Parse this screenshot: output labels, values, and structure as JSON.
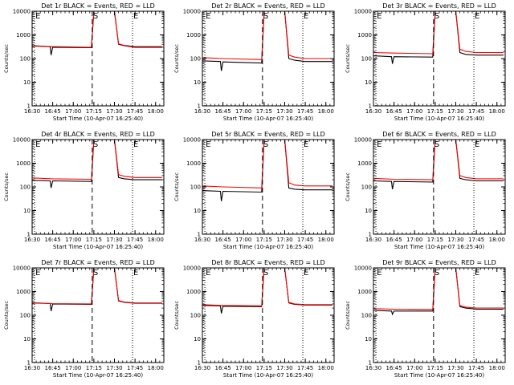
{
  "chart_data": {
    "type": "line",
    "y_scale": "log",
    "ylim": [
      1,
      10000
    ],
    "y_ticks": [
      1,
      10,
      100,
      1000,
      10000
    ],
    "y_tick_labels": [
      "1",
      "10",
      "100",
      "1000",
      "10000"
    ],
    "xlim": [
      16.5,
      18.1
    ],
    "x_ticks": [
      16.5,
      16.75,
      17.0,
      17.25,
      17.5,
      17.75,
      18.0
    ],
    "x_tick_labels": [
      "16:30",
      "16:45",
      "17:00",
      "17:15",
      "17:30",
      "17:45",
      "18:00"
    ],
    "xlabel": "Start Time (10-Apr-07 16:25:40)",
    "ylabel": "Counts/sec",
    "legend": "in title: BLACK = Events, RED = LLD",
    "panels": [
      {
        "title": "Det 1r BLACK = Events, RED = LLD",
        "markers": [
          {
            "label": "E",
            "x": 16.53,
            "style": "dotted"
          },
          {
            "label": "S",
            "x": 17.23,
            "style": "dashed"
          },
          {
            "label": "E",
            "x": 17.72,
            "style": "dotted"
          }
        ],
        "series": [
          {
            "name": "Events",
            "color": "#000000",
            "x": [
              16.5,
              16.7,
              16.72,
              16.73,
              16.75,
              17.22,
              17.25,
              17.5,
              17.55,
              17.62,
              17.75,
              18.08
            ],
            "y": [
              340,
              320,
              310,
              140,
              300,
              290,
              10000,
              10000,
              400,
              350,
              300,
              300
            ]
          },
          {
            "name": "LLD",
            "color": "#ff0000",
            "x": [
              16.5,
              16.75,
              17.22,
              17.25,
              17.5,
              17.55,
              17.62,
              17.75,
              18.08
            ],
            "y": [
              350,
              320,
              300,
              10000,
              10000,
              420,
              360,
              320,
              320
            ]
          }
        ]
      },
      {
        "title": "Det 2r BLACK = Events, RED = LLD",
        "markers": [
          {
            "label": "E",
            "x": 16.53,
            "style": "dotted"
          },
          {
            "label": "S",
            "x": 17.23,
            "style": "dashed"
          },
          {
            "label": "E",
            "x": 17.72,
            "style": "dotted"
          }
        ],
        "series": [
          {
            "name": "Events",
            "color": "#000000",
            "x": [
              16.5,
              16.72,
              16.73,
              16.75,
              17.22,
              17.25,
              17.5,
              17.55,
              17.62,
              17.75,
              18.08
            ],
            "y": [
              80,
              75,
              30,
              72,
              65,
              10000,
              10000,
              100,
              85,
              75,
              75
            ]
          },
          {
            "name": "LLD",
            "color": "#ff0000",
            "x": [
              16.5,
              16.75,
              17.22,
              17.25,
              17.5,
              17.55,
              17.62,
              17.75,
              18.08
            ],
            "y": [
              110,
              100,
              90,
              10000,
              10000,
              140,
              115,
              100,
              100
            ]
          }
        ]
      },
      {
        "title": "Det 3r BLACK = Events, RED = LLD",
        "markers": [
          {
            "label": "E",
            "x": 16.53,
            "style": "dotted"
          },
          {
            "label": "S",
            "x": 17.23,
            "style": "dashed"
          },
          {
            "label": "E",
            "x": 17.72,
            "style": "dotted"
          }
        ],
        "series": [
          {
            "name": "Events",
            "color": "#000000",
            "x": [
              16.5,
              16.72,
              16.73,
              16.75,
              17.22,
              17.25,
              17.5,
              17.55,
              17.62,
              17.75,
              18.08
            ],
            "y": [
              130,
              120,
              60,
              120,
              115,
              10000,
              10000,
              180,
              150,
              140,
              140
            ]
          },
          {
            "name": "LLD",
            "color": "#ff0000",
            "x": [
              16.5,
              16.75,
              17.22,
              17.25,
              17.5,
              17.55,
              17.62,
              17.75,
              18.08
            ],
            "y": [
              180,
              170,
              160,
              10000,
              10000,
              250,
              200,
              180,
              180
            ]
          }
        ]
      },
      {
        "title": "Det 4r BLACK = Events, RED = LLD",
        "markers": [
          {
            "label": "E",
            "x": 16.53,
            "style": "dotted"
          },
          {
            "label": "S",
            "x": 17.23,
            "style": "dashed"
          },
          {
            "label": "E",
            "x": 17.72,
            "style": "dotted"
          }
        ],
        "series": [
          {
            "name": "Events",
            "color": "#000000",
            "x": [
              16.5,
              16.72,
              16.73,
              16.75,
              17.22,
              17.25,
              17.5,
              17.55,
              17.62,
              17.75,
              18.08
            ],
            "y": [
              190,
              180,
              90,
              180,
              170,
              10000,
              10000,
              250,
              220,
              200,
              200
            ]
          },
          {
            "name": "LLD",
            "color": "#ff0000",
            "x": [
              16.5,
              16.75,
              17.22,
              17.25,
              17.5,
              17.55,
              17.62,
              17.75,
              18.08
            ],
            "y": [
              240,
              220,
              210,
              10000,
              10000,
              330,
              280,
              250,
              250
            ]
          }
        ]
      },
      {
        "title": "Det 5r BLACK = Events, RED = LLD",
        "markers": [
          {
            "label": "E",
            "x": 16.53,
            "style": "dotted"
          },
          {
            "label": "S",
            "x": 17.23,
            "style": "dashed"
          },
          {
            "label": "E",
            "x": 17.72,
            "style": "dotted"
          }
        ],
        "series": [
          {
            "name": "Events",
            "color": "#000000",
            "x": [
              16.5,
              16.72,
              16.73,
              16.75,
              17.22,
              17.25,
              17.5,
              17.55,
              17.62,
              17.75,
              18.08
            ],
            "y": [
              70,
              65,
              25,
              65,
              60,
              10000,
              10000,
              90,
              80,
              75,
              75
            ]
          },
          {
            "name": "LLD",
            "color": "#ff0000",
            "x": [
              16.5,
              16.75,
              17.22,
              17.25,
              17.5,
              17.55,
              17.62,
              17.75,
              18.08
            ],
            "y": [
              110,
              100,
              90,
              10000,
              10000,
              150,
              120,
              110,
              110
            ]
          }
        ]
      },
      {
        "title": "Det 6r BLACK = Events, RED = LLD",
        "markers": [
          {
            "label": "E",
            "x": 16.53,
            "style": "dotted"
          },
          {
            "label": "S",
            "x": 17.23,
            "style": "dashed"
          },
          {
            "label": "E",
            "x": 17.72,
            "style": "dotted"
          }
        ],
        "series": [
          {
            "name": "Events",
            "color": "#000000",
            "x": [
              16.5,
              16.72,
              16.73,
              16.75,
              17.22,
              17.25,
              17.5,
              17.55,
              17.62,
              17.75,
              18.08
            ],
            "y": [
              180,
              170,
              80,
              170,
              160,
              10000,
              10000,
              230,
              200,
              180,
              180
            ]
          },
          {
            "name": "LLD",
            "color": "#ff0000",
            "x": [
              16.5,
              16.75,
              17.22,
              17.25,
              17.5,
              17.55,
              17.62,
              17.75,
              18.08
            ],
            "y": [
              230,
              210,
              200,
              10000,
              10000,
              300,
              250,
              220,
              220
            ]
          }
        ]
      },
      {
        "title": "Det 7r BLACK = Events, RED = LLD",
        "markers": [
          {
            "label": "E",
            "x": 16.53,
            "style": "dotted"
          },
          {
            "label": "S",
            "x": 17.23,
            "style": "dashed"
          },
          {
            "label": "E",
            "x": 17.72,
            "style": "dotted"
          }
        ],
        "series": [
          {
            "name": "Events",
            "color": "#000000",
            "x": [
              16.5,
              16.72,
              16.73,
              16.75,
              17.22,
              17.25,
              17.5,
              17.55,
              17.62,
              17.75,
              18.08
            ],
            "y": [
              330,
              310,
              150,
              300,
              290,
              10000,
              10000,
              400,
              350,
              320,
              320
            ]
          },
          {
            "name": "LLD",
            "color": "#ff0000",
            "x": [
              16.5,
              16.75,
              17.22,
              17.25,
              17.5,
              17.55,
              17.62,
              17.75,
              18.08
            ],
            "y": [
              340,
              310,
              300,
              10000,
              10000,
              420,
              360,
              330,
              330
            ]
          }
        ]
      },
      {
        "title": "Det 8r BLACK = Events, RED = LLD",
        "markers": [
          {
            "label": "E",
            "x": 16.53,
            "style": "dotted"
          },
          {
            "label": "S",
            "x": 17.23,
            "style": "dashed"
          },
          {
            "label": "E",
            "x": 17.72,
            "style": "dotted"
          }
        ],
        "series": [
          {
            "name": "Events",
            "color": "#000000",
            "x": [
              16.5,
              16.72,
              16.73,
              16.75,
              17.22,
              17.25,
              17.5,
              17.55,
              17.62,
              17.75,
              18.08
            ],
            "y": [
              260,
              250,
              120,
              240,
              230,
              10000,
              10000,
              330,
              290,
              270,
              270
            ]
          },
          {
            "name": "LLD",
            "color": "#ff0000",
            "x": [
              16.5,
              16.75,
              17.22,
              17.25,
              17.5,
              17.55,
              17.62,
              17.75,
              18.08
            ],
            "y": [
              280,
              260,
              250,
              10000,
              10000,
              350,
              300,
              280,
              280
            ]
          }
        ]
      },
      {
        "title": "Det 9r BLACK = Events, RED = LLD",
        "markers": [
          {
            "label": "E",
            "x": 16.53,
            "style": "dotted"
          },
          {
            "label": "S",
            "x": 17.23,
            "style": "dashed"
          },
          {
            "label": "E",
            "x": 17.72,
            "style": "dotted"
          }
        ],
        "series": [
          {
            "name": "Events",
            "color": "#000000",
            "x": [
              16.5,
              16.72,
              16.73,
              16.75,
              17.22,
              17.25,
              17.5,
              17.55,
              17.62,
              17.75,
              18.08
            ],
            "y": [
              160,
              150,
              110,
              150,
              150,
              10000,
              10000,
              230,
              200,
              180,
              180
            ]
          },
          {
            "name": "LLD",
            "color": "#ff0000",
            "x": [
              16.5,
              16.75,
              17.22,
              17.25,
              17.5,
              17.55,
              17.62,
              17.75,
              18.08
            ],
            "y": [
              190,
              180,
              175,
              10000,
              10000,
              260,
              220,
              200,
              200
            ]
          }
        ]
      }
    ]
  }
}
